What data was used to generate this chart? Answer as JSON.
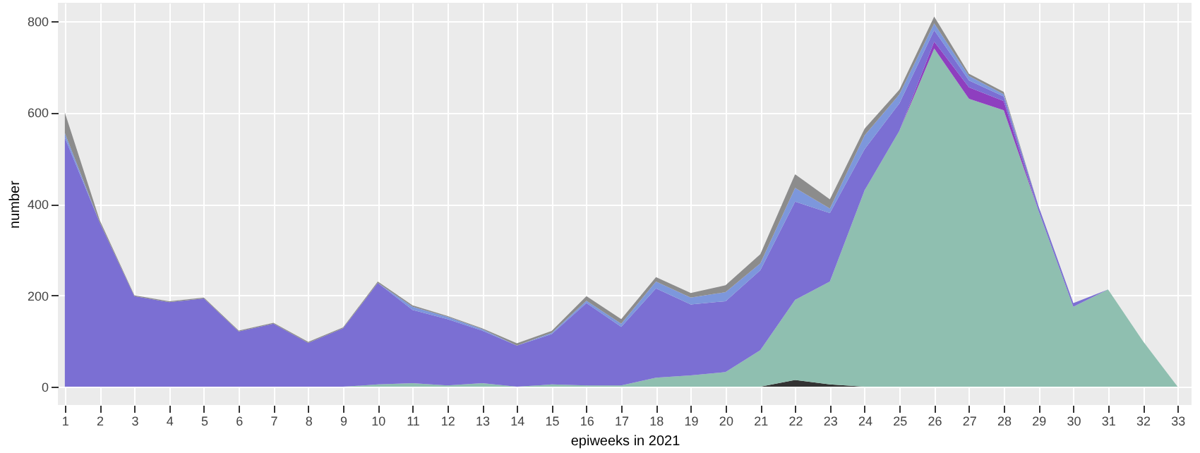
{
  "chart_data": {
    "type": "area",
    "stacked": true,
    "xlabel": "epiweeks in 2021",
    "ylabel": "number",
    "x": [
      1,
      2,
      3,
      4,
      5,
      6,
      7,
      8,
      9,
      10,
      11,
      12,
      13,
      14,
      15,
      16,
      17,
      18,
      19,
      20,
      21,
      22,
      23,
      24,
      25,
      26,
      27,
      28,
      29,
      30,
      31,
      32,
      33
    ],
    "xlim": [
      0.8,
      33.4
    ],
    "xticks": [
      1,
      2,
      3,
      4,
      5,
      6,
      7,
      8,
      9,
      10,
      11,
      12,
      13,
      14,
      15,
      16,
      17,
      18,
      19,
      20,
      21,
      22,
      23,
      24,
      25,
      26,
      27,
      28,
      29,
      30,
      31,
      32,
      33
    ],
    "ylim": [
      -40,
      840
    ],
    "yticks": [
      0,
      200,
      400,
      600,
      800
    ],
    "grid": true,
    "legend": false,
    "series": [
      {
        "color": "#333333",
        "values": [
          0,
          0,
          0,
          0,
          0,
          0,
          0,
          0,
          0,
          0,
          0,
          0,
          0,
          0,
          0,
          0,
          0,
          0,
          0,
          0,
          0,
          15,
          5,
          0,
          0,
          0,
          0,
          0,
          0,
          0,
          0,
          0,
          0
        ]
      },
      {
        "color": "#8fbfb0",
        "values": [
          0,
          0,
          0,
          0,
          0,
          0,
          0,
          0,
          0,
          5,
          8,
          3,
          8,
          0,
          5,
          3,
          3,
          20,
          25,
          32,
          80,
          175,
          225,
          430,
          560,
          740,
          630,
          605,
          385,
          175,
          213,
          100,
          0
        ]
      },
      {
        "color": "#8e3fbf",
        "values": [
          0,
          0,
          0,
          0,
          0,
          0,
          0,
          0,
          0,
          0,
          0,
          0,
          0,
          0,
          0,
          0,
          0,
          0,
          0,
          0,
          0,
          0,
          0,
          0,
          0,
          15,
          25,
          20,
          0,
          0,
          0,
          0,
          0
        ]
      },
      {
        "color": "#7b6fd3",
        "values": [
          545,
          360,
          198,
          185,
          193,
          121,
          138,
          96,
          128,
          222,
          160,
          145,
          115,
          90,
          110,
          180,
          128,
          195,
          155,
          155,
          175,
          215,
          150,
          90,
          60,
          25,
          15,
          10,
          10,
          8,
          0,
          0,
          0
        ]
      },
      {
        "color": "#7d97dc",
        "values": [
          10,
          0,
          0,
          0,
          0,
          0,
          0,
          0,
          0,
          0,
          7,
          5,
          3,
          0,
          3,
          5,
          7,
          15,
          15,
          20,
          15,
          30,
          10,
          30,
          20,
          15,
          10,
          5,
          0,
          0,
          0,
          0,
          0
        ]
      },
      {
        "color": "#8c8c8c",
        "values": [
          45,
          5,
          2,
          2,
          2,
          2,
          2,
          2,
          2,
          3,
          3,
          2,
          2,
          5,
          4,
          10,
          10,
          10,
          10,
          15,
          20,
          30,
          20,
          15,
          10,
          15,
          5,
          5,
          0,
          0,
          0,
          0,
          0
        ]
      }
    ]
  }
}
